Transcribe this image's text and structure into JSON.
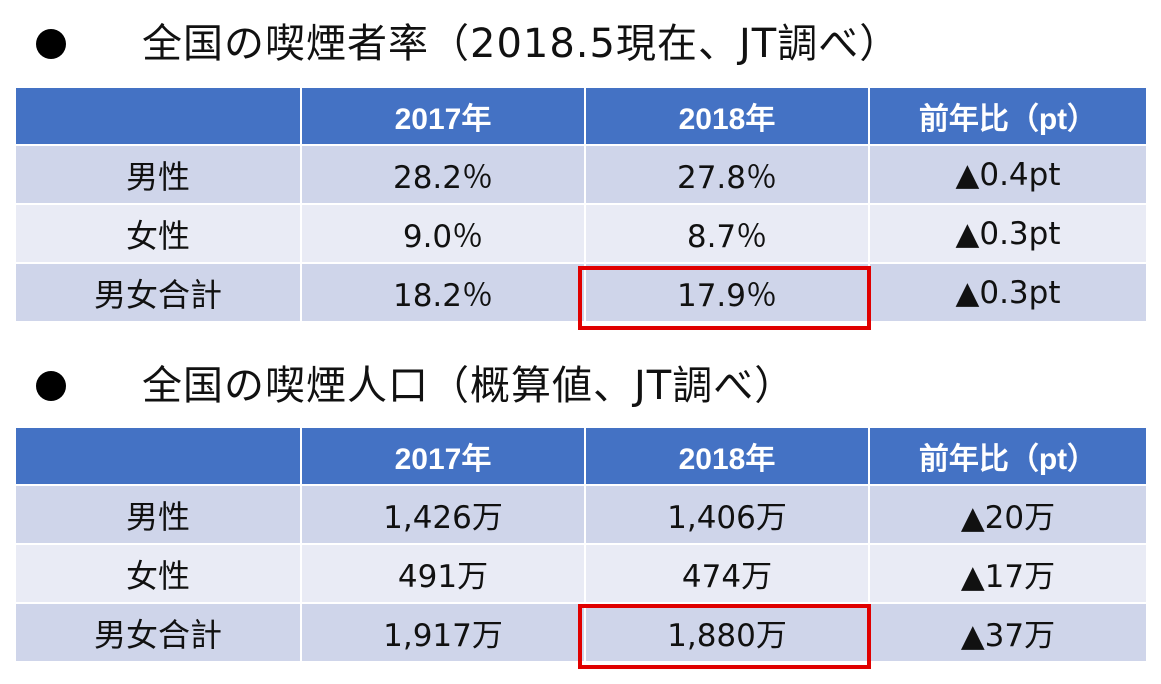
{
  "section1": {
    "title": "全国の喫煙者率（2018.5現在、JT調べ）",
    "headers": [
      "",
      "2017年",
      "2018年",
      "前年比（pt）"
    ],
    "rows": [
      [
        "男性",
        "28.2％",
        "27.8％",
        "▲0.4pt"
      ],
      [
        "女性",
        "9.0％",
        "8.7％",
        "▲0.3pt"
      ],
      [
        "男女合計",
        "18.2％",
        "17.9％",
        "▲0.3pt"
      ]
    ]
  },
  "section2": {
    "title": "全国の喫煙人口（概算値、JT調べ）",
    "headers": [
      "",
      "2017年",
      "2018年",
      "前年比（pt）"
    ],
    "rows": [
      [
        "男性",
        "1,426万",
        "1,406万",
        "▲20万"
      ],
      [
        "女性",
        "491万",
        "474万",
        "▲17万"
      ],
      [
        "男女合計",
        "1,917万",
        "1,880万",
        "▲37万"
      ]
    ]
  },
  "colors": {
    "header_bg": "#4472c4",
    "row_odd_bg": "#cfd5ea",
    "row_even_bg": "#e9ebf5",
    "highlight_border": "#e00000"
  }
}
